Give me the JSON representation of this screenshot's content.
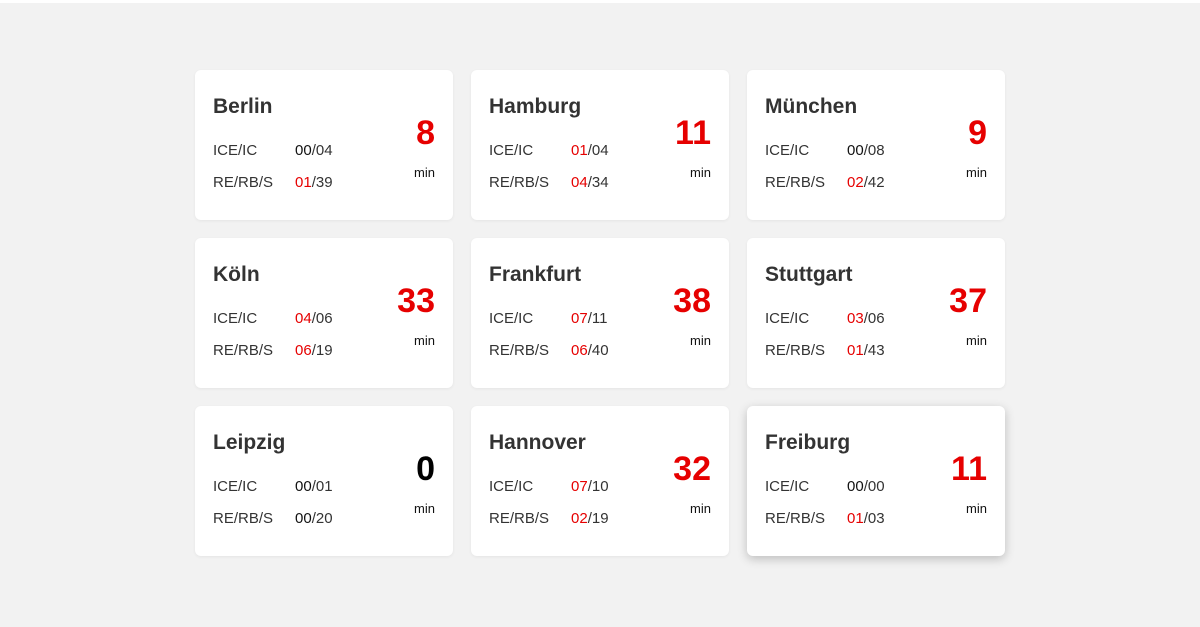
{
  "colors": {
    "accent_red": "#e60000",
    "background": "#f2f2f2",
    "card": "#ffffff",
    "text": "#333333"
  },
  "labels": {
    "row1": "ICE/IC",
    "row2": "RE/RB/S",
    "unit": "min"
  },
  "cities": [
    {
      "name": "Berlin",
      "ice_delayed": "00",
      "ice_total": "04",
      "re_delayed": "01",
      "re_total": "39",
      "delay": "8"
    },
    {
      "name": "Hamburg",
      "ice_delayed": "01",
      "ice_total": "04",
      "re_delayed": "04",
      "re_total": "34",
      "delay": "11"
    },
    {
      "name": "München",
      "ice_delayed": "00",
      "ice_total": "08",
      "re_delayed": "02",
      "re_total": "42",
      "delay": "9"
    },
    {
      "name": "Köln",
      "ice_delayed": "04",
      "ice_total": "06",
      "re_delayed": "06",
      "re_total": "19",
      "delay": "33"
    },
    {
      "name": "Frankfurt",
      "ice_delayed": "07",
      "ice_total": "11",
      "re_delayed": "06",
      "re_total": "40",
      "delay": "38"
    },
    {
      "name": "Stuttgart",
      "ice_delayed": "03",
      "ice_total": "06",
      "re_delayed": "01",
      "re_total": "43",
      "delay": "37"
    },
    {
      "name": "Leipzig",
      "ice_delayed": "00",
      "ice_total": "01",
      "re_delayed": "00",
      "re_total": "20",
      "delay": "0"
    },
    {
      "name": "Hannover",
      "ice_delayed": "07",
      "ice_total": "10",
      "re_delayed": "02",
      "re_total": "19",
      "delay": "32"
    },
    {
      "name": "Freiburg",
      "ice_delayed": "00",
      "ice_total": "00",
      "re_delayed": "01",
      "re_total": "03",
      "delay": "11"
    }
  ]
}
